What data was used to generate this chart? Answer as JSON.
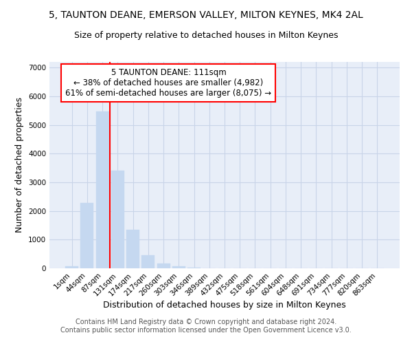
{
  "title": "5, TAUNTON DEANE, EMERSON VALLEY, MILTON KEYNES, MK4 2AL",
  "subtitle": "Size of property relative to detached houses in Milton Keynes",
  "xlabel": "Distribution of detached houses by size in Milton Keynes",
  "ylabel": "Number of detached properties",
  "footer_line1": "Contains HM Land Registry data © Crown copyright and database right 2024.",
  "footer_line2": "Contains public sector information licensed under the Open Government Licence v3.0.",
  "bar_labels": [
    "1sqm",
    "44sqm",
    "87sqm",
    "131sqm",
    "174sqm",
    "217sqm",
    "260sqm",
    "303sqm",
    "346sqm",
    "389sqm",
    "432sqm",
    "475sqm",
    "518sqm",
    "561sqm",
    "604sqm",
    "648sqm",
    "691sqm",
    "734sqm",
    "777sqm",
    "820sqm",
    "863sqm"
  ],
  "bar_values": [
    75,
    2270,
    5470,
    3400,
    1350,
    450,
    175,
    80,
    30,
    0,
    0,
    0,
    0,
    0,
    0,
    0,
    0,
    0,
    0,
    0,
    0
  ],
  "bar_color": "#c5d8f0",
  "bar_edge_color": "#c5d8f0",
  "grid_color": "#c8d4e8",
  "vline_color": "red",
  "vline_x": 2.5,
  "annotation_text": "5 TAUNTON DEANE: 111sqm\n← 38% of detached houses are smaller (4,982)\n61% of semi-detached houses are larger (8,075) →",
  "annotation_box_color": "white",
  "annotation_box_edge_color": "red",
  "ylim": [
    0,
    7200
  ],
  "yticks": [
    0,
    1000,
    2000,
    3000,
    4000,
    5000,
    6000,
    7000
  ],
  "background_color": "white",
  "plot_bg_color": "#e8eef8",
  "title_fontsize": 10,
  "subtitle_fontsize": 9,
  "axis_label_fontsize": 9,
  "tick_fontsize": 7.5,
  "footer_fontsize": 7,
  "annotation_fontsize": 8.5
}
